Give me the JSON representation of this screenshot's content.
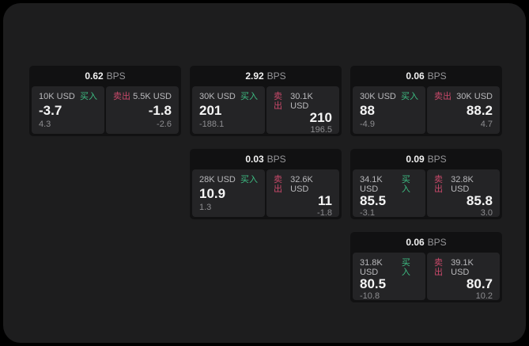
{
  "colors": {
    "buy_green": "#3dbd83",
    "sell_red": "#c9496a",
    "panel_bg": "#1d1d1e",
    "card_bg": "#111112",
    "pane_bg": "#242426"
  },
  "labels": {
    "buy": "买入",
    "sell": "卖出",
    "bps_unit": "BPS"
  },
  "cards": [
    {
      "bps": "0.62",
      "buy": {
        "amount": "10K USD",
        "value": "-3.7",
        "delta": "4.3"
      },
      "sell": {
        "amount": "5.5K USD",
        "value": "-1.8",
        "delta": "-2.6"
      }
    },
    {
      "bps": "2.92",
      "buy": {
        "amount": "30K USD",
        "value": "201",
        "delta": "-188.1"
      },
      "sell": {
        "amount": "30.1K USD",
        "value": "210",
        "delta": "196.5"
      }
    },
    {
      "bps": "0.06",
      "buy": {
        "amount": "30K USD",
        "value": "88",
        "delta": "-4.9"
      },
      "sell": {
        "amount": "30K USD",
        "value": "88.2",
        "delta": "4.7"
      }
    },
    {
      "bps": "0.03",
      "buy": {
        "amount": "28K USD",
        "value": "10.9",
        "delta": "1.3"
      },
      "sell": {
        "amount": "32.6K USD",
        "value": "11",
        "delta": "-1.8"
      }
    },
    {
      "bps": "0.09",
      "buy": {
        "amount": "34.1K USD",
        "value": "85.5",
        "delta": "-3.1"
      },
      "sell": {
        "amount": "32.8K USD",
        "value": "85.8",
        "delta": "3.0"
      }
    },
    {
      "bps": "0.06",
      "buy": {
        "amount": "31.8K USD",
        "value": "80.5",
        "delta": "-10.8"
      },
      "sell": {
        "amount": "39.1K USD",
        "value": "80.7",
        "delta": "10.2"
      }
    }
  ]
}
